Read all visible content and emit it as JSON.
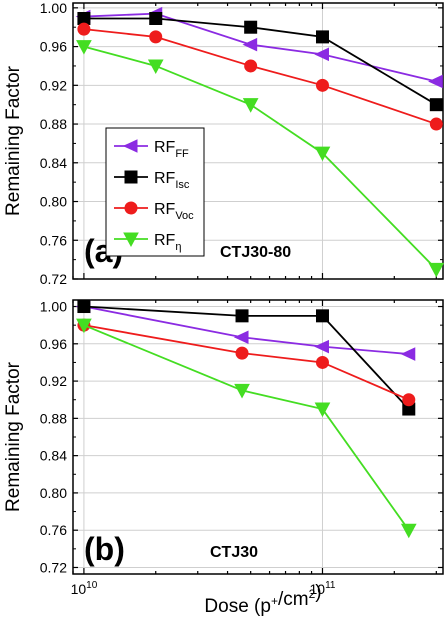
{
  "chart_data": [
    {
      "type": "line",
      "panel_label": "(a)",
      "annotation": "CTJ30-80",
      "ylabel": "Remaining Factor",
      "xlabel": "",
      "x_scale": "log",
      "xlim": [
        9000000000,
        320000000000
      ],
      "ylim": [
        0.72,
        1.005
      ],
      "yticks": [
        0.72,
        0.76,
        0.8,
        0.84,
        0.88,
        0.92,
        0.96,
        1.0
      ],
      "ytick_labels": [
        "0.72",
        "0.76",
        "0.80",
        "0.84",
        "0.88",
        "0.92",
        "0.96",
        "1.00"
      ],
      "grid": true,
      "legend_position": "center-left",
      "series": [
        {
          "name": "RF",
          "sub": "FF",
          "color": "#8b2be2",
          "marker": "triangle-left",
          "x": [
            10000000000,
            20000000000,
            50000000000,
            100000000000,
            300000000000
          ],
          "y": [
            0.991,
            0.994,
            0.962,
            0.952,
            0.924
          ]
        },
        {
          "name": "RF",
          "sub": "Isc",
          "color": "#000000",
          "marker": "square",
          "x": [
            10000000000,
            20000000000,
            50000000000,
            100000000000,
            300000000000
          ],
          "y": [
            0.989,
            0.989,
            0.98,
            0.97,
            0.9
          ]
        },
        {
          "name": "RF",
          "sub": "Voc",
          "color": "#ee1c1c",
          "marker": "circle",
          "x": [
            10000000000,
            20000000000,
            50000000000,
            100000000000,
            300000000000
          ],
          "y": [
            0.978,
            0.97,
            0.94,
            0.92,
            0.88
          ]
        },
        {
          "name": "RF",
          "sub": "η",
          "color": "#44dd22",
          "marker": "triangle-down",
          "x": [
            10000000000,
            20000000000,
            50000000000,
            100000000000,
            300000000000
          ],
          "y": [
            0.96,
            0.94,
            0.9,
            0.85,
            0.73
          ]
        }
      ]
    },
    {
      "type": "line",
      "panel_label": "(b)",
      "annotation": "CTJ30",
      "ylabel": "Remaining Factor",
      "xlabel": "Dose (p⁺/cm²)",
      "x_scale": "log",
      "xlim": [
        9000000000,
        320000000000
      ],
      "ylim": [
        0.713,
        1.007
      ],
      "yticks": [
        0.72,
        0.76,
        0.8,
        0.84,
        0.88,
        0.92,
        0.96,
        1.0
      ],
      "ytick_labels": [
        "0.72",
        "0.76",
        "0.80",
        "0.84",
        "0.88",
        "0.92",
        "0.96",
        "1.00"
      ],
      "xticks": [
        10000000000,
        100000000000
      ],
      "xtick_labels": [
        {
          "base": "10",
          "exp": "10"
        },
        {
          "base": "10",
          "exp": "11"
        }
      ],
      "grid": true,
      "series": [
        {
          "name": "RF",
          "sub": "FF",
          "color": "#8b2be2",
          "marker": "triangle-left",
          "x": [
            10000000000,
            46000000000,
            100000000000,
            230000000000
          ],
          "y": [
            1.0,
            0.967,
            0.957,
            0.949
          ]
        },
        {
          "name": "RF",
          "sub": "Isc",
          "color": "#000000",
          "marker": "square",
          "x": [
            10000000000,
            46000000000,
            100000000000,
            230000000000
          ],
          "y": [
            1.0,
            0.99,
            0.99,
            0.89
          ]
        },
        {
          "name": "RF",
          "sub": "Voc",
          "color": "#ee1c1c",
          "marker": "circle",
          "x": [
            10000000000,
            46000000000,
            100000000000,
            230000000000
          ],
          "y": [
            0.98,
            0.95,
            0.94,
            0.9
          ]
        },
        {
          "name": "RF",
          "sub": "η",
          "color": "#44dd22",
          "marker": "triangle-down",
          "x": [
            10000000000,
            46000000000,
            100000000000,
            230000000000
          ],
          "y": [
            0.98,
            0.91,
            0.89,
            0.76
          ]
        }
      ]
    }
  ]
}
